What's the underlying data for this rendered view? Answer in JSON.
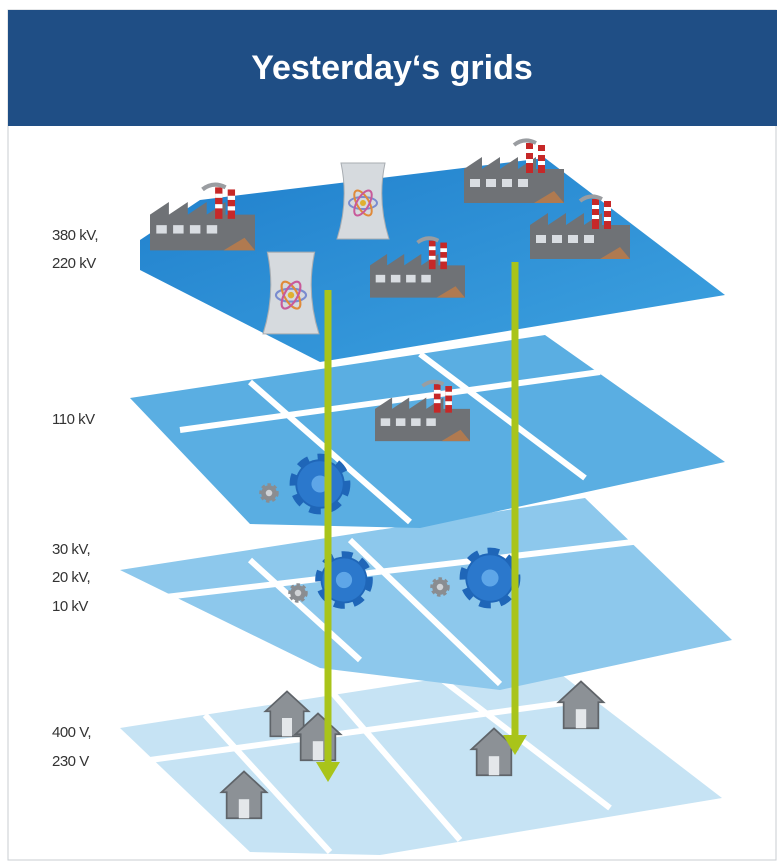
{
  "header": {
    "title": "Yesterday‘s grids"
  },
  "levels": [
    {
      "lines": [
        "380 kV,",
        "220 kV"
      ]
    },
    {
      "lines": [
        "110 kV"
      ]
    },
    {
      "lines": [
        "30 kV,",
        "20 kV,",
        "10 kV"
      ]
    },
    {
      "lines": [
        "400 V,",
        "230 V"
      ]
    }
  ]
}
